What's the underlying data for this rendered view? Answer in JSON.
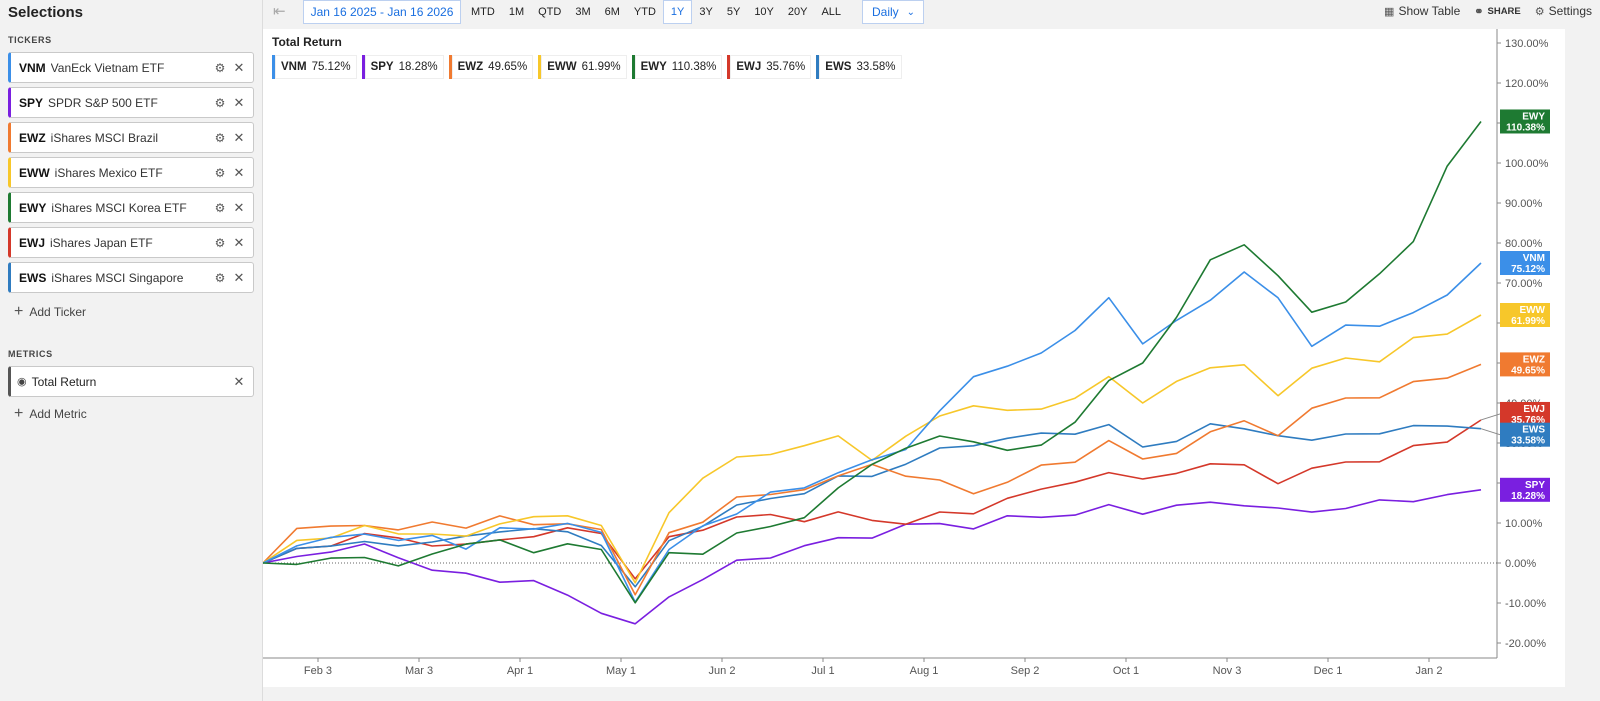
{
  "sidebar": {
    "title": "Selections",
    "tickers_label": "TICKERS",
    "metrics_label": "METRICS",
    "tickers": [
      {
        "symbol": "VNM",
        "name": "VanEck Vietnam ETF",
        "color": "#3b8fe8"
      },
      {
        "symbol": "SPY",
        "name": "SPDR S&P 500 ETF",
        "color": "#7a1fe0"
      },
      {
        "symbol": "EWZ",
        "name": "iShares MSCI Brazil",
        "color": "#f07a30"
      },
      {
        "symbol": "EWW",
        "name": "iShares Mexico ETF",
        "color": "#f7c72a"
      },
      {
        "symbol": "EWY",
        "name": "iShares MSCI Korea ETF",
        "color": "#1e7a32"
      },
      {
        "symbol": "EWJ",
        "name": "iShares Japan ETF",
        "color": "#d4382a"
      },
      {
        "symbol": "EWS",
        "name": "iShares MSCI Singapore",
        "color": "#2f7cc0"
      }
    ],
    "add_ticker": "Add Ticker",
    "metric": {
      "name": "Total Return"
    },
    "add_metric": "Add Metric"
  },
  "toolbar": {
    "date_range": "Jan 16 2025 - Jan 16 2026",
    "ranges": [
      "MTD",
      "1M",
      "QTD",
      "3M",
      "6M",
      "YTD",
      "1Y",
      "3Y",
      "5Y",
      "10Y",
      "20Y",
      "ALL"
    ],
    "active_range": "1Y",
    "frequency": "Daily",
    "show_table": "Show Table",
    "share": "SHARE",
    "settings": "Settings"
  },
  "chart_data": {
    "type": "line",
    "title": "Total Return",
    "ylim": [
      -20,
      130
    ],
    "y_ticks": [
      "130.00%",
      "120.00%",
      "110.00%",
      "100.00%",
      "90.00%",
      "80.00%",
      "70.00%",
      "60.00%",
      "50.00%",
      "40.00%",
      "30.00%",
      "20.00%",
      "10.00%",
      "0.00%",
      "-10.00%",
      "-20.00%"
    ],
    "x_ticks": [
      "Feb 3",
      "Mar 3",
      "Apr 1",
      "May 1",
      "Jun 2",
      "Jul 1",
      "Aug 1",
      "Sep 2",
      "Oct 1",
      "Nov 3",
      "Dec 1",
      "Jan 2"
    ],
    "series": [
      {
        "name": "VNM",
        "final": "75.12%",
        "color": "#3b8fe8",
        "values": [
          0,
          4,
          6,
          8,
          5,
          7,
          4,
          8,
          9,
          10,
          7,
          -9,
          3,
          9,
          13,
          17,
          19,
          23,
          25,
          29,
          38,
          46,
          50,
          52,
          58,
          67,
          54,
          61,
          66,
          72,
          67,
          54,
          59,
          60,
          62,
          67,
          75
        ]
      },
      {
        "name": "SPY",
        "final": "18.28%",
        "color": "#7a1fe0",
        "values": [
          0,
          2,
          3,
          4,
          2,
          -2,
          -3,
          -4,
          -5,
          -8,
          -12,
          -16,
          -8,
          -4,
          0,
          2,
          4,
          6,
          7,
          9,
          10,
          9,
          11,
          12,
          12,
          14,
          13,
          14,
          15,
          15,
          13,
          13,
          14,
          15,
          16,
          17,
          18.3
        ]
      },
      {
        "name": "EWZ",
        "final": "49.65%",
        "color": "#f07a30",
        "values": [
          0,
          8,
          10,
          9,
          8,
          11,
          8,
          12,
          10,
          9,
          9,
          -8,
          7,
          11,
          16,
          17,
          19,
          21,
          25,
          22,
          20,
          18,
          20,
          24,
          26,
          30,
          26,
          28,
          32,
          36,
          32,
          38,
          42,
          41,
          45,
          47,
          49.65
        ]
      },
      {
        "name": "EWW",
        "final": "61.99%",
        "color": "#f7c72a",
        "values": [
          0,
          5,
          7,
          9,
          7,
          8,
          6,
          10,
          12,
          11,
          10,
          -5,
          12,
          22,
          26,
          27,
          30,
          31,
          26,
          32,
          36,
          40,
          38,
          38,
          42,
          46,
          40,
          46,
          48,
          50,
          42,
          48,
          52,
          50,
          56,
          58,
          62
        ]
      },
      {
        "name": "EWY",
        "final": "110.38%",
        "color": "#1e7a32",
        "values": [
          0,
          -1,
          2,
          1,
          -1,
          3,
          4,
          6,
          3,
          4,
          4,
          -10,
          2,
          3,
          7,
          9,
          12,
          18,
          25,
          29,
          31,
          31,
          28,
          29,
          36,
          45,
          50,
          62,
          75,
          80,
          72,
          62,
          66,
          72,
          80,
          100,
          110.38
        ]
      },
      {
        "name": "EWJ",
        "final": "35.76%",
        "color": "#d4382a",
        "values": [
          0,
          3,
          5,
          7,
          6,
          5,
          4,
          6,
          7,
          8,
          8,
          -4,
          6,
          9,
          11,
          12,
          11,
          12,
          11,
          10,
          12,
          13,
          16,
          18,
          21,
          22,
          21,
          23,
          24,
          25,
          20,
          23,
          26,
          25,
          29,
          31,
          35.76
        ]
      },
      {
        "name": "EWS",
        "final": "33.58%",
        "color": "#2f7cc0",
        "values": [
          0,
          3,
          5,
          5,
          4,
          6,
          6,
          8,
          9,
          7,
          5,
          -6,
          5,
          10,
          14,
          16,
          18,
          21,
          22,
          25,
          28,
          30,
          31,
          32,
          33,
          34,
          29,
          31,
          34,
          34,
          32,
          30,
          33,
          32,
          34,
          35,
          33.58
        ]
      }
    ]
  }
}
